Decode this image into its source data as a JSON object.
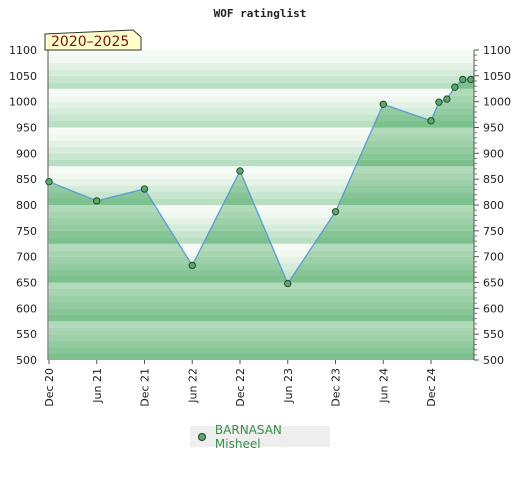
{
  "chart_data": {
    "type": "line",
    "title": "WOF ratinglist",
    "period_label": "2020–2025",
    "ylim": [
      500,
      1100
    ],
    "y_ticks": [
      500,
      550,
      600,
      650,
      700,
      750,
      800,
      850,
      900,
      950,
      1000,
      1050,
      1100
    ],
    "x_ticks": [
      "Dec 20",
      "Jun 21",
      "Dec 21",
      "Jun 22",
      "Dec 22",
      "Jun 23",
      "Dec 23",
      "Jun 24",
      "Dec 24"
    ],
    "series": [
      {
        "name": "BARNASAN Misheel",
        "x": [
          0,
          0.5,
          1,
          1.5,
          2,
          2.5,
          3,
          3.5,
          4,
          4.083,
          4.167,
          4.25,
          4.333,
          4.417
        ],
        "y": [
          845,
          808,
          831,
          683,
          866,
          648,
          787,
          995,
          963,
          999,
          1005,
          1028,
          1043,
          1043
        ]
      }
    ],
    "grid": true,
    "legend_position": "bottom-center",
    "colors": {
      "line": "#5b9bd5",
      "marker": "#5aa86a",
      "marker_edge": "#1f3f25"
    }
  }
}
